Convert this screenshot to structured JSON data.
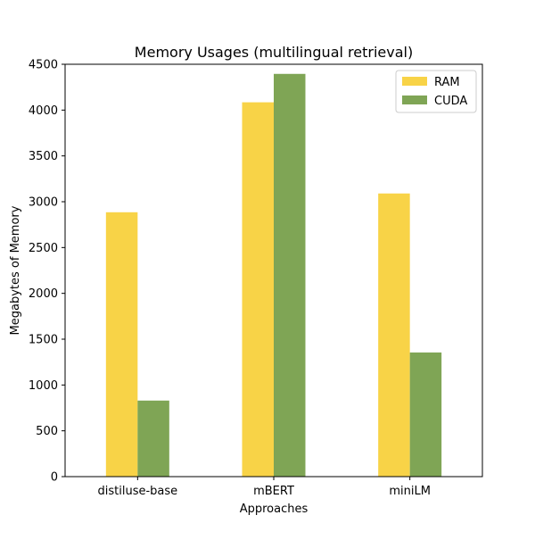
{
  "chart_data": {
    "type": "bar",
    "title": "Memory Usages (multilingual retrieval)",
    "xlabel": "Approaches",
    "ylabel": "Megabytes of Memory",
    "categories": [
      "distiluse-base",
      "mBERT",
      "miniLM"
    ],
    "series": [
      {
        "name": "RAM",
        "values": [
          2885,
          4085,
          3090
        ],
        "color": "#f8d347"
      },
      {
        "name": "CUDA",
        "values": [
          830,
          4395,
          1355
        ],
        "color": "#7fa555"
      }
    ],
    "ylim": [
      0,
      4500
    ],
    "yticks": [
      0,
      500,
      1000,
      1500,
      2000,
      2500,
      3000,
      3500,
      4000,
      4500
    ],
    "grid": false,
    "legend_position": "top-right"
  }
}
